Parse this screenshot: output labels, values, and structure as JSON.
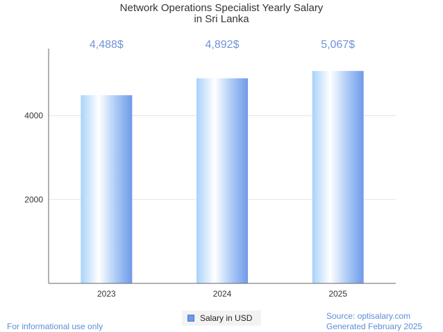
{
  "chart_data": {
    "type": "bar",
    "title": "Network Operations Specialist Yearly Salary",
    "subtitle": "in Sri Lanka",
    "categories": [
      "2023",
      "2024",
      "2025"
    ],
    "values": [
      4488,
      4892,
      5067
    ],
    "data_labels": [
      "4,488$",
      "4,892$",
      "5,067$"
    ],
    "y_ticks": [
      2000,
      4000
    ],
    "ylim": [
      0,
      5600
    ],
    "xlabel": "",
    "ylabel": "",
    "grid": true,
    "legend": {
      "position": "bottom",
      "entries": [
        "Salary in USD"
      ]
    },
    "colors": {
      "bar_light": "#ffffff",
      "bar_mid": "#b9dcfb",
      "bar_dark": "#6f9ae8",
      "label": "#6f94d8"
    }
  },
  "footer": {
    "left": "For informational use only",
    "source": "Source: optisalary.com",
    "generated": "Generated February 2025"
  }
}
